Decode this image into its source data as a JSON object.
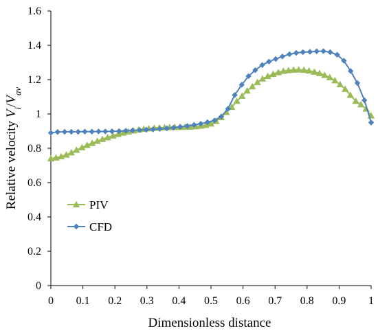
{
  "chart_data": {
    "type": "line",
    "title": "",
    "xlabel": "Dimensionless distance",
    "ylabel_parts": [
      "Relative velocity ",
      "V",
      "i",
      "/",
      "V",
      "av"
    ],
    "xlim": [
      0,
      1
    ],
    "ylim": [
      0,
      1.6
    ],
    "x_ticks": [
      "0",
      "0.1",
      "0.2",
      "0.3",
      "0.4",
      "0.5",
      "0.6",
      "0.7",
      "0.8",
      "0.9",
      "1"
    ],
    "y_ticks": [
      "0",
      "0.2",
      "0.4",
      "0.6",
      "0.8",
      "1",
      "1.2",
      "1.4",
      "1.6"
    ],
    "grid": false,
    "legend_position": "bottom-left",
    "series": [
      {
        "name": "PIV",
        "color": "#9BBB59",
        "marker": "triangle",
        "x": [
          0.0,
          0.016,
          0.032,
          0.048,
          0.064,
          0.08,
          0.097,
          0.113,
          0.129,
          0.145,
          0.161,
          0.177,
          0.194,
          0.21,
          0.226,
          0.242,
          0.258,
          0.274,
          0.29,
          0.306,
          0.323,
          0.339,
          0.355,
          0.371,
          0.387,
          0.403,
          0.419,
          0.435,
          0.452,
          0.468,
          0.484,
          0.5,
          0.516,
          0.532,
          0.548,
          0.565,
          0.581,
          0.597,
          0.613,
          0.629,
          0.645,
          0.661,
          0.677,
          0.694,
          0.71,
          0.726,
          0.742,
          0.758,
          0.774,
          0.79,
          0.806,
          0.823,
          0.839,
          0.855,
          0.871,
          0.887,
          0.903,
          0.919,
          0.935,
          0.952,
          0.968,
          0.984,
          1.0
        ],
        "y": [
          0.74,
          0.745,
          0.752,
          0.762,
          0.775,
          0.79,
          0.805,
          0.818,
          0.83,
          0.842,
          0.853,
          0.863,
          0.873,
          0.882,
          0.89,
          0.897,
          0.903,
          0.908,
          0.912,
          0.915,
          0.918,
          0.92,
          0.921,
          0.922,
          0.923,
          0.923,
          0.924,
          0.925,
          0.927,
          0.93,
          0.935,
          0.943,
          0.958,
          0.98,
          1.01,
          1.04,
          1.075,
          1.105,
          1.135,
          1.16,
          1.185,
          1.205,
          1.22,
          1.232,
          1.242,
          1.25,
          1.254,
          1.257,
          1.258,
          1.256,
          1.252,
          1.245,
          1.237,
          1.226,
          1.213,
          1.195,
          1.172,
          1.145,
          1.11,
          1.075,
          1.055,
          1.03,
          0.99
        ]
      },
      {
        "name": "CFD",
        "color": "#4F81BD",
        "marker": "diamond",
        "x": [
          0.0,
          0.021,
          0.043,
          0.064,
          0.085,
          0.106,
          0.128,
          0.149,
          0.17,
          0.191,
          0.213,
          0.234,
          0.255,
          0.277,
          0.298,
          0.319,
          0.34,
          0.362,
          0.383,
          0.404,
          0.426,
          0.447,
          0.468,
          0.489,
          0.511,
          0.532,
          0.553,
          0.574,
          0.596,
          0.617,
          0.638,
          0.66,
          0.681,
          0.702,
          0.723,
          0.745,
          0.766,
          0.787,
          0.809,
          0.83,
          0.851,
          0.872,
          0.894,
          0.915,
          0.936,
          0.957,
          0.979,
          1.0
        ],
        "y": [
          0.89,
          0.895,
          0.896,
          0.896,
          0.896,
          0.897,
          0.897,
          0.898,
          0.898,
          0.899,
          0.9,
          0.902,
          0.904,
          0.906,
          0.908,
          0.91,
          0.913,
          0.916,
          0.92,
          0.925,
          0.93,
          0.936,
          0.943,
          0.952,
          0.962,
          0.985,
          1.03,
          1.11,
          1.17,
          1.22,
          1.255,
          1.285,
          1.305,
          1.32,
          1.335,
          1.348,
          1.356,
          1.36,
          1.362,
          1.365,
          1.366,
          1.36,
          1.345,
          1.31,
          1.25,
          1.18,
          1.08,
          0.95
        ]
      }
    ]
  }
}
